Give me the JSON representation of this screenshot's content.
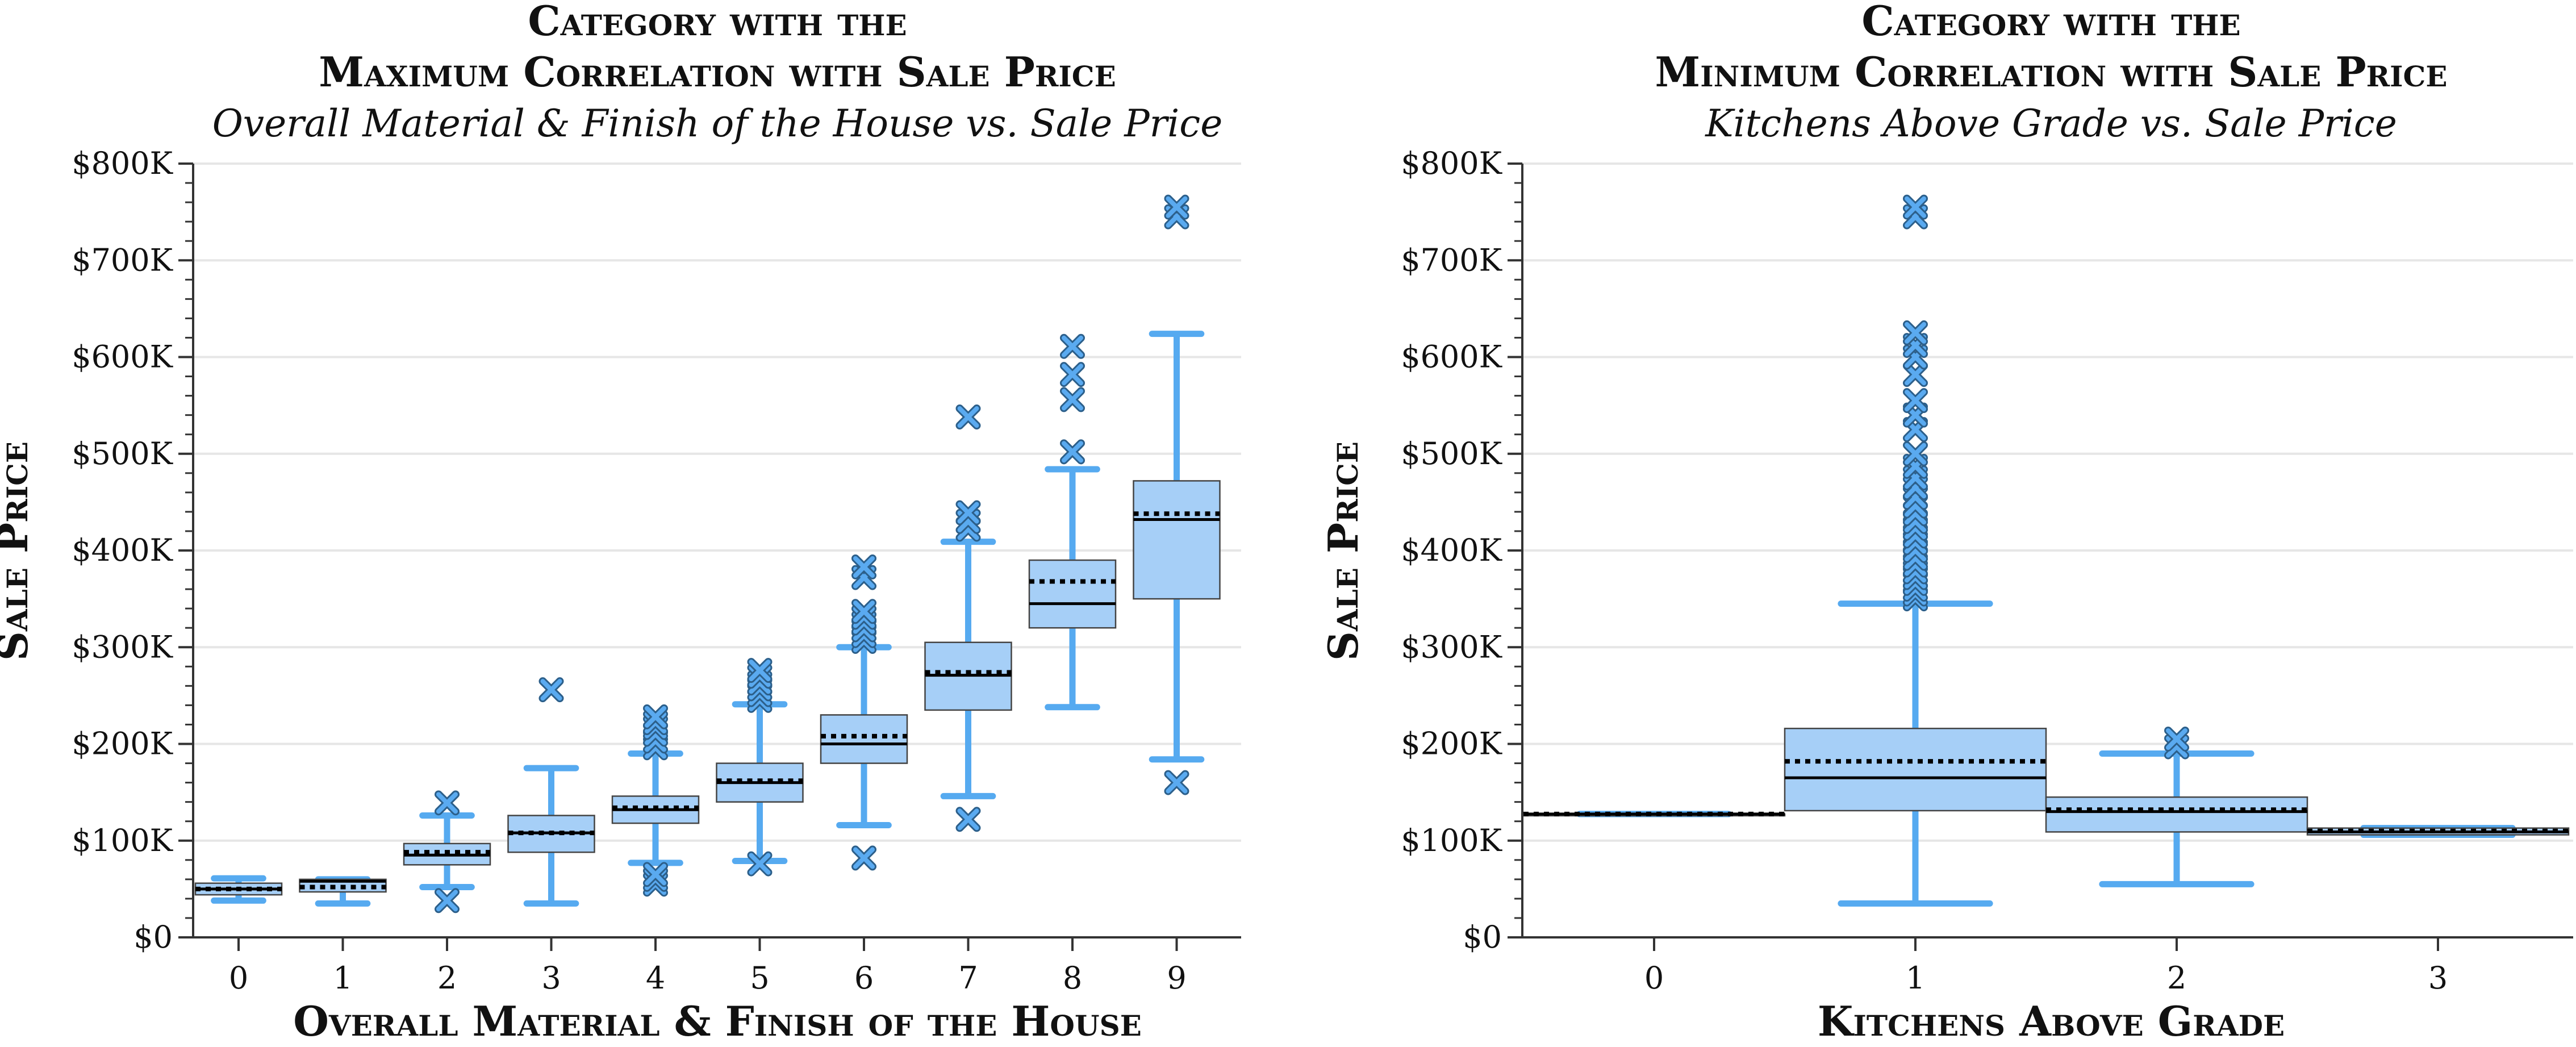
{
  "colors": {
    "box_fill": "#a6cff7",
    "whisker": "#56aaf0",
    "outlier": "#5aaaf0",
    "grid": "#e6e6e6",
    "axis": "#333333",
    "median": "#000000"
  },
  "chart_data": [
    {
      "type": "box",
      "title": "Category with the",
      "title2": "Maximum Correlation with Sale Price",
      "subtitle": "Overall Material & Finish of the House vs. Sale Price",
      "xlabel": "Overall Material & Finish of the House",
      "ylabel": "Sale Price",
      "ylim": [
        0,
        800000
      ],
      "ytick_values": [
        0,
        100000,
        200000,
        300000,
        400000,
        500000,
        600000,
        700000,
        800000
      ],
      "ytick_labels": [
        "$0",
        "$100K",
        "$200K",
        "$300K",
        "$400K",
        "$500K",
        "$600K",
        "$700K",
        "$800K"
      ],
      "grid": true,
      "categories": [
        "0",
        "1",
        "2",
        "3",
        "4",
        "5",
        "6",
        "7",
        "8",
        "9"
      ],
      "boxes": [
        {
          "whislo": 38000,
          "q1": 44000,
          "median": 50000,
          "q3": 56000,
          "whishi": 61000,
          "mean": 50000,
          "outliers": []
        },
        {
          "whislo": 35000,
          "q1": 47000,
          "median": 58000,
          "q3": 60000,
          "whishi": 60000,
          "mean": 52000,
          "outliers": []
        },
        {
          "whislo": 52000,
          "q1": 75000,
          "median": 85000,
          "q3": 97000,
          "whishi": 126000,
          "mean": 88000,
          "outliers": [
            38000,
            139000
          ]
        },
        {
          "whislo": 35000,
          "q1": 88000,
          "median": 108000,
          "q3": 126000,
          "whishi": 175000,
          "mean": 108000,
          "outliers": [
            256000
          ]
        },
        {
          "whislo": 77000,
          "q1": 118000,
          "median": 132000,
          "q3": 146000,
          "whishi": 190000,
          "mean": 134000,
          "outliers": [
            55000,
            60000,
            65000,
            196000,
            203000,
            210000,
            217000,
            222000,
            228000
          ]
        },
        {
          "whislo": 79000,
          "q1": 140000,
          "median": 160000,
          "q3": 180000,
          "whishi": 241000,
          "mean": 162000,
          "outliers": [
            76000,
            245000,
            251000,
            257000,
            263000,
            270000,
            276000
          ]
        },
        {
          "whislo": 116000,
          "q1": 180000,
          "median": 200000,
          "q3": 230000,
          "whishi": 300000,
          "mean": 208000,
          "outliers": [
            82000,
            306000,
            312000,
            318000,
            325000,
            331000,
            337000,
            372000,
            383000
          ]
        },
        {
          "whislo": 146000,
          "q1": 235000,
          "median": 271000,
          "q3": 305000,
          "whishi": 409000,
          "mean": 274000,
          "outliers": [
            122000,
            422000,
            430000,
            439000,
            538000
          ]
        },
        {
          "whislo": 238000,
          "q1": 320000,
          "median": 345000,
          "q3": 390000,
          "whishi": 484000,
          "mean": 368000,
          "outliers": [
            502000,
            556000,
            582000,
            611000
          ]
        },
        {
          "whislo": 184000,
          "q1": 350000,
          "median": 432000,
          "q3": 472000,
          "whishi": 624000,
          "mean": 438000,
          "outliers": [
            160000,
            745000,
            755000
          ]
        }
      ]
    },
    {
      "type": "box",
      "title": "Category with the",
      "title2": "Minimum Correlation with Sale Price",
      "subtitle": "Kitchens Above Grade vs. Sale Price",
      "xlabel": "Kitchens Above Grade",
      "ylabel": "Sale Price",
      "ylim": [
        0,
        800000
      ],
      "ytick_values": [
        0,
        100000,
        200000,
        300000,
        400000,
        500000,
        600000,
        700000,
        800000
      ],
      "ytick_labels": [
        "$0",
        "$100K",
        "$200K",
        "$300K",
        "$400K",
        "$500K",
        "$600K",
        "$700K",
        "$800K"
      ],
      "grid": true,
      "categories": [
        "0",
        "1",
        "2",
        "3"
      ],
      "boxes": [
        {
          "whislo": 127500,
          "q1": 127500,
          "median": 127500,
          "q3": 127500,
          "whishi": 127500,
          "mean": 127500,
          "outliers": []
        },
        {
          "whislo": 35000,
          "q1": 131000,
          "median": 165000,
          "q3": 216000,
          "whishi": 345000,
          "mean": 182000,
          "outliers": [
            350000,
            355000,
            360000,
            366000,
            372000,
            378000,
            385000,
            392000,
            400000,
            408000,
            415000,
            423000,
            430000,
            438000,
            446000,
            455000,
            465000,
            475000,
            487000,
            500000,
            525000,
            540000,
            555000,
            582000,
            600000,
            612000,
            625000,
            745000,
            755000
          ]
        },
        {
          "whislo": 55000,
          "q1": 109000,
          "median": 130000,
          "q3": 145000,
          "whishi": 190000,
          "mean": 132000,
          "outliers": [
            197000,
            205000
          ]
        },
        {
          "whislo": 106000,
          "q1": 106000,
          "median": 109000,
          "q3": 113000,
          "whishi": 113000,
          "mean": 110000,
          "outliers": []
        }
      ]
    }
  ]
}
